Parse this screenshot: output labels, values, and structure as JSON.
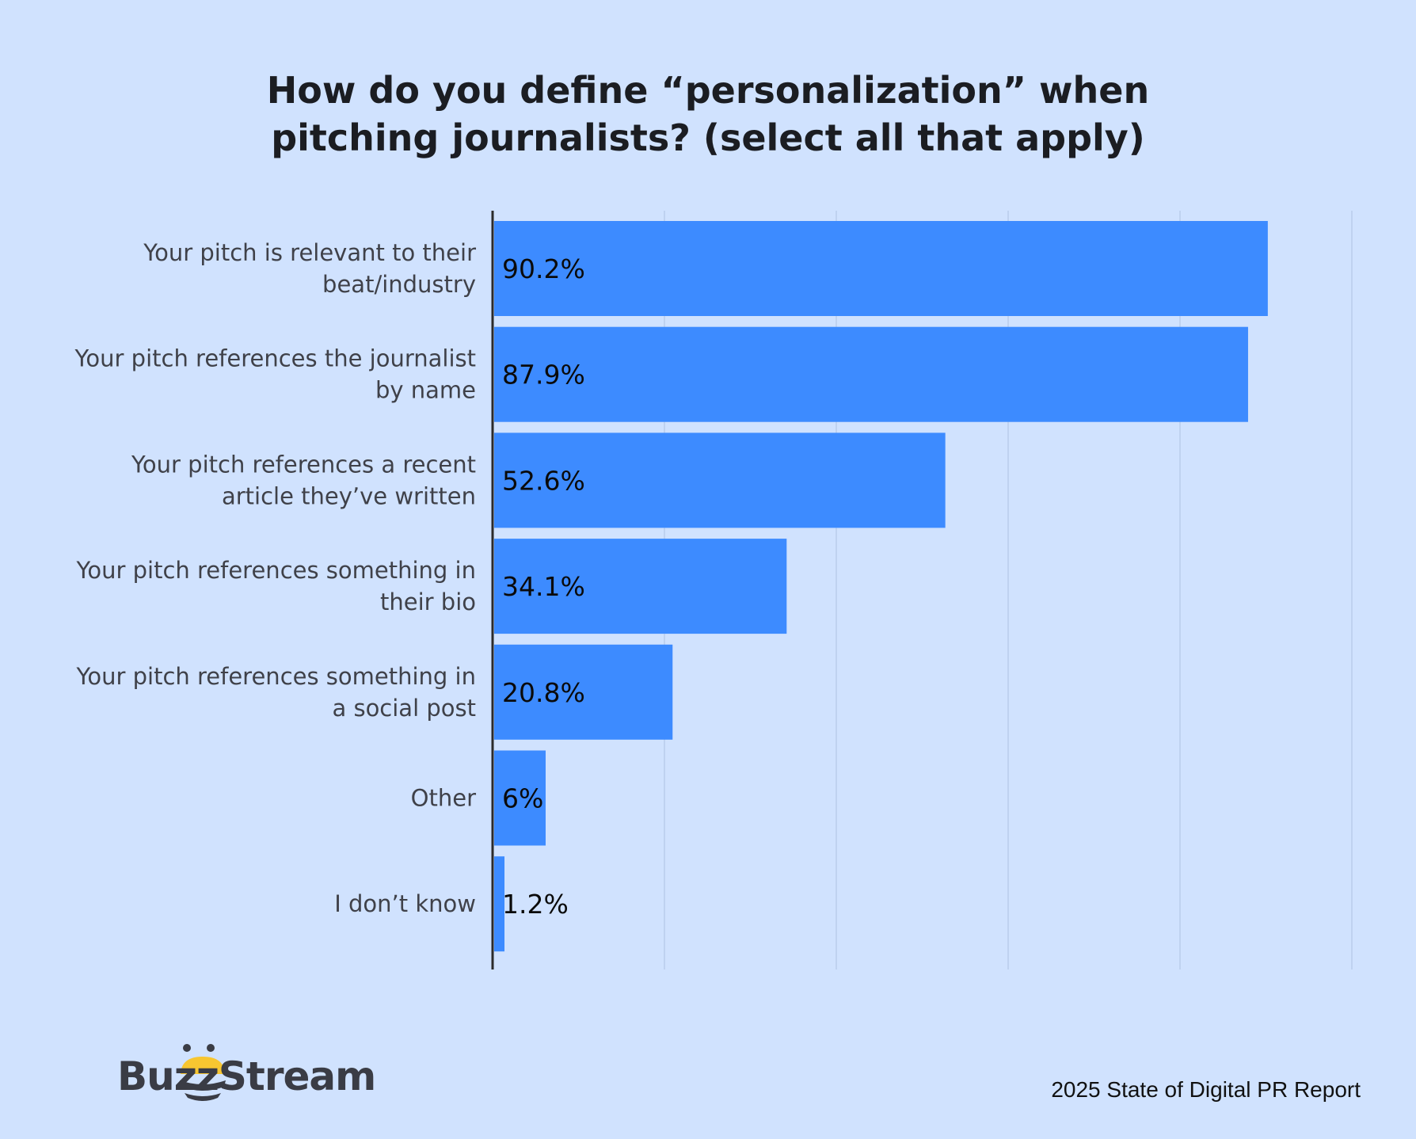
{
  "title_lines": [
    "How do you define “personalization” when",
    "pitching journalists? (select all that apply)"
  ],
  "chart_data": {
    "type": "bar",
    "orientation": "horizontal",
    "title": "How do you define “personalization” when pitching journalists? (select all that apply)",
    "categories": [
      [
        "Your pitch is relevant to their",
        "beat/industry"
      ],
      [
        "Your pitch references the journalist",
        "by name"
      ],
      [
        "Your pitch references a recent",
        "article they’ve written"
      ],
      [
        "Your pitch references something in",
        "their bio"
      ],
      [
        "Your pitch references something in",
        "a social post"
      ],
      [
        "Other"
      ],
      [
        "I don’t know"
      ]
    ],
    "values": [
      90.2,
      87.9,
      52.6,
      34.1,
      20.8,
      6,
      1.2
    ],
    "value_labels": [
      "90.2%",
      "87.9%",
      "52.6%",
      "34.1%",
      "20.8%",
      "6%",
      "1.2%"
    ],
    "xlim": [
      0,
      100
    ],
    "grid": true,
    "bar_color": "#3d8bff",
    "background_color": "#d0e2fe"
  },
  "footer": {
    "brand": "BuzzStream",
    "report": "2025 State of Digital PR Report"
  }
}
